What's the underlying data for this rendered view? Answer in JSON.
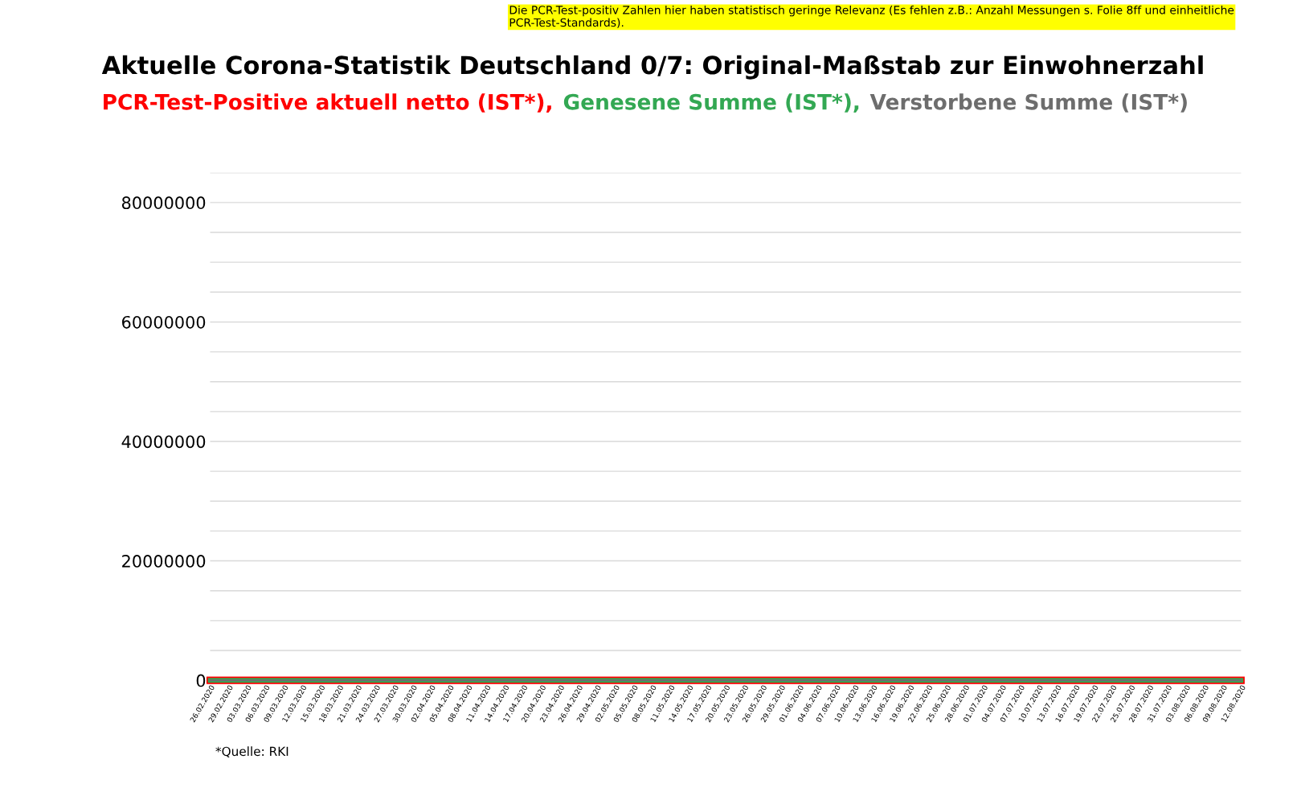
{
  "chart_data": {
    "type": "line",
    "title": "Aktuelle Corona-Statistik Deutschland 0/7: Original-Maßstab zur Einwohnerzahl",
    "annotations": [
      "Die PCR-Test-positiv Zahlen hier haben statistisch geringe Relevanz (Es fehlen z.B.: Anzahl Messungen s. Folie 8ff und einheitliche PCR-Test-Standards).",
      "*Quelle: RKI"
    ],
    "categories": [
      "26.02.2020",
      "29.02.2020",
      "03.03.2020",
      "06.03.2020",
      "09.03.2020",
      "12.03.2020",
      "15.03.2020",
      "18.03.2020",
      "21.03.2020",
      "24.03.2020",
      "27.03.2020",
      "30.03.2020",
      "02.04.2020",
      "05.04.2020",
      "08.04.2020",
      "11.04.2020",
      "14.04.2020",
      "17.04.2020",
      "20.04.2020",
      "23.04.2020",
      "26.04.2020",
      "29.04.2020",
      "02.05.2020",
      "05.05.2020",
      "08.05.2020",
      "11.05.2020",
      "14.05.2020",
      "17.05.2020",
      "20.05.2020",
      "23.05.2020",
      "26.05.2020",
      "29.05.2020",
      "01.06.2020",
      "04.06.2020",
      "07.06.2020",
      "10.06.2020",
      "13.06.2020",
      "16.06.2020",
      "19.06.2020",
      "22.06.2020",
      "25.06.2020",
      "28.06.2020",
      "01.07.2020",
      "04.07.2020",
      "07.07.2020",
      "10.07.2020",
      "13.07.2020",
      "16.07.2020",
      "19.07.2020",
      "22.07.2020",
      "25.07.2020",
      "28.07.2020",
      "31.07.2020",
      "03.08.2020",
      "06.08.2020",
      "09.08.2020",
      "12.08.2020"
    ],
    "series": [
      {
        "name": "PCR-Test-Positive aktuell netto (IST*),",
        "color": "#ff0000",
        "values": [
          0,
          0,
          0,
          0,
          0,
          0,
          0,
          0,
          0,
          0,
          0,
          0,
          0,
          0,
          0,
          0,
          0,
          0,
          0,
          0,
          0,
          0,
          0,
          0,
          0,
          0,
          0,
          0,
          0,
          0,
          0,
          0,
          0,
          0,
          0,
          0,
          0,
          0,
          0,
          0,
          0,
          0,
          0,
          0,
          0,
          0,
          0,
          0,
          0,
          0,
          0,
          0,
          0,
          0,
          0,
          0,
          0
        ]
      },
      {
        "name": "Genesene Summe (IST*),",
        "color": "#33a853",
        "values": [
          0,
          0,
          0,
          0,
          0,
          0,
          0,
          0,
          0,
          0,
          0,
          0,
          0,
          0,
          0,
          0,
          0,
          0,
          0,
          0,
          0,
          0,
          0,
          0,
          0,
          0,
          0,
          0,
          0,
          0,
          0,
          0,
          0,
          0,
          0,
          0,
          0,
          0,
          0,
          0,
          0,
          0,
          0,
          0,
          0,
          0,
          0,
          0,
          0,
          0,
          0,
          0,
          0,
          0,
          0,
          0,
          0
        ]
      },
      {
        "name": "Verstorbene Summe (IST*)",
        "color": "#6d6d6d",
        "values": [
          0,
          0,
          0,
          0,
          0,
          0,
          0,
          0,
          0,
          0,
          0,
          0,
          0,
          0,
          0,
          0,
          0,
          0,
          0,
          0,
          0,
          0,
          0,
          0,
          0,
          0,
          0,
          0,
          0,
          0,
          0,
          0,
          0,
          0,
          0,
          0,
          0,
          0,
          0,
          0,
          0,
          0,
          0,
          0,
          0,
          0,
          0,
          0,
          0,
          0,
          0,
          0,
          0,
          0,
          0,
          0,
          0
        ]
      }
    ],
    "ylim": [
      0,
      85000000
    ],
    "yticks": [
      0,
      {
        "value": 5000000,
        "label": null
      },
      {
        "value": 10000000,
        "label": null
      },
      {
        "value": 15000000,
        "label": null
      },
      20000000,
      {
        "value": 25000000,
        "label": null
      },
      {
        "value": 30000000,
        "label": null
      },
      {
        "value": 35000000,
        "label": null
      },
      40000000,
      {
        "value": 45000000,
        "label": null
      },
      {
        "value": 50000000,
        "label": null
      },
      {
        "value": 55000000,
        "label": null
      },
      60000000,
      {
        "value": 65000000,
        "label": null
      },
      {
        "value": 70000000,
        "label": null
      },
      {
        "value": 75000000,
        "label": null
      },
      80000000,
      {
        "value": 85000000,
        "label": null
      }
    ],
    "grid": "y",
    "marker": "none",
    "line_style": "solid"
  }
}
